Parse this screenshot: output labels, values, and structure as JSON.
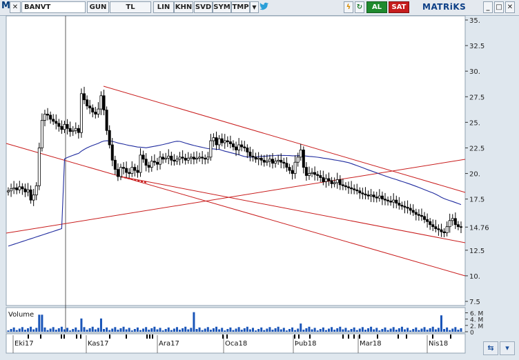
{
  "toolbar": {
    "app_letter": "M",
    "close_glyph": "✕",
    "symbol": "BANVT",
    "buttons": [
      "GUN",
      "TL",
      "LIN",
      "KHN",
      "SVD",
      "SYM",
      "TMP"
    ],
    "dropdown_glyph": "▼",
    "buy_label": "AL",
    "sell_label": "SAT",
    "brand": "MATRiKS",
    "window_controls": [
      "_",
      "□",
      "✕"
    ],
    "accent": "#1f8a2e",
    "sell_color": "#c61d1d"
  },
  "chart_data": {
    "type": "candlestick",
    "symbol": "BANVT",
    "y_ticks": [
      "35.",
      "32.5",
      "30.",
      "27.5",
      "25.",
      "22.5",
      "20.",
      "17.5",
      "14.76",
      "12.5",
      "10.",
      "7.5"
    ],
    "ylim": [
      7.5,
      35
    ],
    "last_price": 14.76,
    "x_labels": [
      "Eki17",
      "Kas17",
      "Ara17",
      "Oca18",
      "Þub18",
      "Mar18",
      "Nis18"
    ],
    "volume_label": "Volume",
    "volume_ticks": [
      "6. M",
      "4. M",
      "2. M",
      "0"
    ],
    "up_color": "#ffffff",
    "down_color": "#000000",
    "trendline_color": "#c81a1a",
    "ma_color": "#1e2a9e",
    "closes": [
      18.3,
      18.5,
      18.6,
      18.4,
      18.7,
      18.5,
      18.2,
      18.4,
      17.4,
      17.9,
      18.8,
      22.5,
      25.2,
      25.8,
      25.7,
      25.3,
      25.1,
      24.9,
      24.6,
      24.3,
      24.8,
      24.4,
      24.1,
      24.2,
      24.4,
      24.0,
      27.8,
      27.2,
      26.6,
      26.4,
      26.0,
      25.8,
      26.3,
      27.6,
      26.2,
      24.2,
      22.8,
      21.3,
      20.4,
      19.7,
      20.6,
      20.5,
      20.1,
      20.0,
      20.6,
      20.3,
      20.1,
      21.8,
      21.4,
      20.8,
      20.6,
      21.2,
      21.1,
      20.9,
      21.6,
      21.4,
      21.5,
      21.7,
      21.3,
      21.2,
      21.4,
      21.6,
      21.5,
      21.3,
      21.5,
      21.6,
      21.4,
      21.5,
      21.6,
      21.5,
      21.4,
      21.6,
      23.2,
      23.5,
      22.8,
      23.4,
      23.0,
      23.2,
      23.1,
      22.9,
      22.6,
      22.3,
      22.8,
      22.6,
      22.5,
      22.1,
      21.7,
      21.6,
      21.4,
      21.5,
      21.3,
      21.1,
      21.2,
      21.4,
      21.0,
      21.2,
      21.3,
      21.1,
      21.0,
      20.6,
      20.3,
      20.0,
      21.1,
      21.6,
      22.3,
      20.6,
      19.8,
      20.0,
      20.1,
      19.9,
      19.8,
      19.6,
      19.2,
      19.5,
      19.3,
      19.0,
      19.1,
      19.4,
      18.9,
      18.8,
      18.7,
      18.6,
      18.5,
      18.4,
      18.3,
      18.1,
      18.0,
      17.9,
      17.8,
      17.9,
      17.7,
      17.6,
      17.8,
      17.5,
      17.4,
      17.3,
      17.2,
      17.4,
      17.1,
      16.9,
      16.8,
      16.7,
      16.6,
      16.4,
      16.2,
      16.0,
      15.9,
      15.8,
      15.5,
      15.3,
      15.0,
      14.8,
      14.6,
      14.5,
      14.3,
      14.2,
      14.8,
      15.4,
      15.6,
      15.0,
      14.8,
      14.76
    ]
  }
}
